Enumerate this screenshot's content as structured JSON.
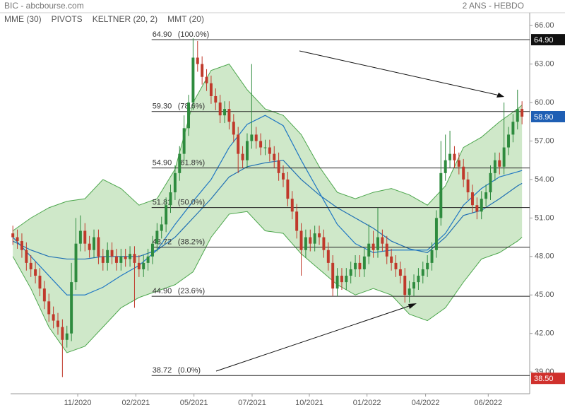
{
  "chart_data": {
    "type": "candlestick",
    "title": "BIC - abcbourse.com",
    "subtitle": "2 ANS - HEBDO",
    "up_color": "#2e8b3e",
    "down_color": "#c0392b",
    "xlim": [
      -0.5,
      114.7
    ],
    "ylim": [
      37.3,
      67.0
    ],
    "yticks": [
      {
        "value": 66,
        "label": "66.00"
      },
      {
        "value": 63,
        "label": "63.00"
      },
      {
        "value": 60,
        "label": "60.00"
      },
      {
        "value": 57,
        "label": "57.00"
      },
      {
        "value": 54,
        "label": "54.00"
      },
      {
        "value": 51,
        "label": "51.00"
      },
      {
        "value": 48,
        "label": "48.00"
      },
      {
        "value": 45,
        "label": "45.00"
      },
      {
        "value": 42,
        "label": "42.00"
      },
      {
        "value": 39,
        "label": "39.00"
      }
    ],
    "xticks": [
      {
        "value": 14.4,
        "label": "11/2020"
      },
      {
        "value": 27.3,
        "label": "02/2021"
      },
      {
        "value": 40.2,
        "label": "05/2021"
      },
      {
        "value": 53.1,
        "label": "07/2021"
      },
      {
        "value": 65.8,
        "label": "10/2021"
      },
      {
        "value": 78.6,
        "label": "01/2022"
      },
      {
        "value": 91.6,
        "label": "04/2022"
      },
      {
        "value": 105.5,
        "label": "06/2022"
      }
    ],
    "candles": [
      [
        49.8,
        50.4,
        48.9,
        49.5
      ],
      [
        49.5,
        50.1,
        48.6,
        49.2
      ],
      [
        49.2,
        49.8,
        47.9,
        48.5
      ],
      [
        48.5,
        49.1,
        46.9,
        47.5
      ],
      [
        47.5,
        48.1,
        46.4,
        47.0
      ],
      [
        47.0,
        47.6,
        45.9,
        46.5
      ],
      [
        46.5,
        47.1,
        44.9,
        45.5
      ],
      [
        45.5,
        46.1,
        43.9,
        44.5
      ],
      [
        44.5,
        45.1,
        42.9,
        43.5
      ],
      [
        43.5,
        44.1,
        42.4,
        43.0
      ],
      [
        43.0,
        43.6,
        41.9,
        42.5
      ],
      [
        42.5,
        43.1,
        38.6,
        41.5
      ],
      [
        41.5,
        42.6,
        40.9,
        42.0
      ],
      [
        42.0,
        47.5,
        41.4,
        46.0
      ],
      [
        46.0,
        51.0,
        45.4,
        49.0
      ],
      [
        49.0,
        51.2,
        48.4,
        50.0
      ],
      [
        50.0,
        50.6,
        48.4,
        49.0
      ],
      [
        49.0,
        49.6,
        47.9,
        48.5
      ],
      [
        48.5,
        50.1,
        47.9,
        49.5
      ],
      [
        49.5,
        50.1,
        47.4,
        48.0
      ],
      [
        48.0,
        48.6,
        46.9,
        47.5
      ],
      [
        47.5,
        49.1,
        46.9,
        48.5
      ],
      [
        48.5,
        49.1,
        47.4,
        48.0
      ],
      [
        48.0,
        48.6,
        46.9,
        47.5
      ],
      [
        47.5,
        48.6,
        46.9,
        48.0
      ],
      [
        48.0,
        48.6,
        47.2,
        47.8
      ],
      [
        47.8,
        48.8,
        47.2,
        48.2
      ],
      [
        48.2,
        48.8,
        44.0,
        47.5
      ],
      [
        47.5,
        48.1,
        46.4,
        47.0
      ],
      [
        47.0,
        48.1,
        46.4,
        47.5
      ],
      [
        47.5,
        48.6,
        46.9,
        48.0
      ],
      [
        48.0,
        49.6,
        47.4,
        49.0
      ],
      [
        49.0,
        50.6,
        48.4,
        50.0
      ],
      [
        50.0,
        51.1,
        49.4,
        50.5
      ],
      [
        50.5,
        52.6,
        49.9,
        52.0
      ],
      [
        52.0,
        53.6,
        51.4,
        53.0
      ],
      [
        53.0,
        55.1,
        52.4,
        54.5
      ],
      [
        54.5,
        56.6,
        53.9,
        56.0
      ],
      [
        56.0,
        59.0,
        55.4,
        58.0
      ],
      [
        58.0,
        60.6,
        57.4,
        60.0
      ],
      [
        60.0,
        65.0,
        59.4,
        63.5
      ],
      [
        63.5,
        64.8,
        62.4,
        63.0
      ],
      [
        63.0,
        63.6,
        61.4,
        62.0
      ],
      [
        62.0,
        62.6,
        60.9,
        61.5
      ],
      [
        61.5,
        62.1,
        59.9,
        60.5
      ],
      [
        60.5,
        61.1,
        59.4,
        60.0
      ],
      [
        60.0,
        60.6,
        58.4,
        59.0
      ],
      [
        59.0,
        60.1,
        58.4,
        59.5
      ],
      [
        59.5,
        60.1,
        57.9,
        58.5
      ],
      [
        58.5,
        59.1,
        56.9,
        57.5
      ],
      [
        57.5,
        58.1,
        54.5,
        56.0
      ],
      [
        56.0,
        56.6,
        54.9,
        55.5
      ],
      [
        55.5,
        57.6,
        54.9,
        57.0
      ],
      [
        57.0,
        63.0,
        56.4,
        57.5
      ],
      [
        57.5,
        58.1,
        56.4,
        57.0
      ],
      [
        57.0,
        57.6,
        55.9,
        56.5
      ],
      [
        56.5,
        57.1,
        55.9,
        56.5
      ],
      [
        56.5,
        57.1,
        55.4,
        56.0
      ],
      [
        56.0,
        56.6,
        54.9,
        55.5
      ],
      [
        55.5,
        56.1,
        53.9,
        54.5
      ],
      [
        54.5,
        55.1,
        53.4,
        54.0
      ],
      [
        54.0,
        54.6,
        51.9,
        52.5
      ],
      [
        52.5,
        53.1,
        50.9,
        51.5
      ],
      [
        51.5,
        52.1,
        49.4,
        50.0
      ],
      [
        50.0,
        50.6,
        46.5,
        48.5
      ],
      [
        48.5,
        50.1,
        47.9,
        49.5
      ],
      [
        49.5,
        50.1,
        48.4,
        49.0
      ],
      [
        49.0,
        50.4,
        48.4,
        49.8
      ],
      [
        49.8,
        50.4,
        48.9,
        49.5
      ],
      [
        49.5,
        50.1,
        47.9,
        48.5
      ],
      [
        48.5,
        49.1,
        46.9,
        47.5
      ],
      [
        47.5,
        48.1,
        44.9,
        45.5
      ],
      [
        45.5,
        47.1,
        44.9,
        46.5
      ],
      [
        46.5,
        47.1,
        45.4,
        46.0
      ],
      [
        46.0,
        47.1,
        45.4,
        46.5
      ],
      [
        46.5,
        47.6,
        45.9,
        47.0
      ],
      [
        47.0,
        48.1,
        46.4,
        47.5
      ],
      [
        47.5,
        48.1,
        46.4,
        47.0
      ],
      [
        47.0,
        48.6,
        46.4,
        48.0
      ],
      [
        48.0,
        50.5,
        47.4,
        49.0
      ],
      [
        49.0,
        50.0,
        47.9,
        48.5
      ],
      [
        48.5,
        51.8,
        47.9,
        49.5
      ],
      [
        49.5,
        50.1,
        48.4,
        49.0
      ],
      [
        49.0,
        49.6,
        47.4,
        48.0
      ],
      [
        48.0,
        48.6,
        46.9,
        47.5
      ],
      [
        47.5,
        48.1,
        46.4,
        47.0
      ],
      [
        47.0,
        47.6,
        45.9,
        46.5
      ],
      [
        46.5,
        47.1,
        44.4,
        45.0
      ],
      [
        45.0,
        46.1,
        44.4,
        45.5
      ],
      [
        45.5,
        46.6,
        44.9,
        46.0
      ],
      [
        46.0,
        47.1,
        45.4,
        46.5
      ],
      [
        46.5,
        47.6,
        45.9,
        47.0
      ],
      [
        47.0,
        48.1,
        46.4,
        47.5
      ],
      [
        47.5,
        49.1,
        46.9,
        48.5
      ],
      [
        48.5,
        51.6,
        47.9,
        51.0
      ],
      [
        51.0,
        57.0,
        50.4,
        54.5
      ],
      [
        54.5,
        57.5,
        53.9,
        55.5
      ],
      [
        55.5,
        57.8,
        54.9,
        56.0
      ],
      [
        56.0,
        56.6,
        54.9,
        55.5
      ],
      [
        55.5,
        56.1,
        54.4,
        55.0
      ],
      [
        55.0,
        55.6,
        53.4,
        54.0
      ],
      [
        54.0,
        54.6,
        52.4,
        53.0
      ],
      [
        53.0,
        53.6,
        51.4,
        52.0
      ],
      [
        52.0,
        52.6,
        50.9,
        51.5
      ],
      [
        51.5,
        53.1,
        50.9,
        52.5
      ],
      [
        52.5,
        53.6,
        51.9,
        53.0
      ],
      [
        53.0,
        55.1,
        52.4,
        54.5
      ],
      [
        54.5,
        56.1,
        53.9,
        55.5
      ],
      [
        55.5,
        56.1,
        54.4,
        55.0
      ],
      [
        55.0,
        60.0,
        54.4,
        56.5
      ],
      [
        56.5,
        58.1,
        55.9,
        57.5
      ],
      [
        57.5,
        59.1,
        56.9,
        58.5
      ],
      [
        58.5,
        61.0,
        57.9,
        59.5
      ],
      [
        59.5,
        60.1,
        58.3,
        58.9
      ]
    ],
    "line_x": [
      0,
      4,
      8,
      12,
      16,
      20,
      24,
      28,
      32,
      36,
      40,
      44,
      48,
      52,
      56,
      60,
      64,
      68,
      72,
      76,
      80,
      84,
      88,
      92,
      96,
      100,
      104,
      108,
      112,
      113
    ],
    "series": [
      {
        "name": "MME (30)",
        "color": "#1f6fb4",
        "values": [
          49.2,
          48.5,
          48.0,
          47.8,
          47.8,
          48.0,
          48.0,
          48.0,
          48.5,
          49.5,
          51.0,
          52.5,
          54.2,
          55.0,
          55.3,
          55.5,
          54.0,
          52.8,
          51.8,
          51.0,
          50.2,
          49.2,
          48.6,
          48.3,
          49.5,
          51.2,
          51.6,
          52.5,
          53.5,
          53.7
        ]
      },
      {
        "name": "MMT (20)",
        "color": "#1f77c4",
        "values": [
          49.5,
          48.0,
          46.5,
          45.0,
          45.0,
          45.6,
          46.5,
          47.3,
          48.5,
          50.5,
          52.3,
          54.0,
          56.5,
          58.3,
          59.0,
          58.2,
          55.5,
          53.0,
          50.5,
          49.0,
          48.3,
          48.5,
          48.5,
          48.5,
          49.8,
          52.0,
          53.3,
          54.2,
          54.6,
          54.7
        ]
      }
    ],
    "keltner": {
      "name": "KELTNER (20, 2)",
      "color": "#4ca64c",
      "fill": "#cfe8c9",
      "upper": [
        50.0,
        51.0,
        51.8,
        52.3,
        52.5,
        54.0,
        53.3,
        52.0,
        52.5,
        54.8,
        60.0,
        62.5,
        63.0,
        61.0,
        59.5,
        59.0,
        57.5,
        55.0,
        53.0,
        52.5,
        53.0,
        53.3,
        52.8,
        52.0,
        53.5,
        56.5,
        57.3,
        58.5,
        59.5,
        59.8
      ],
      "lower": [
        48.0,
        45.5,
        42.5,
        40.5,
        41.0,
        42.5,
        44.0,
        44.8,
        45.3,
        45.8,
        46.8,
        49.5,
        51.3,
        51.5,
        50.0,
        49.8,
        48.2,
        47.0,
        45.8,
        45.0,
        45.5,
        45.0,
        43.5,
        43.0,
        44.0,
        46.0,
        47.8,
        48.3,
        49.2,
        49.5
      ]
    },
    "pivots": {
      "name": "PIVOTS",
      "color": "#666",
      "start_x": 30.8,
      "levels": [
        {
          "value": 64.9,
          "label": "64.90",
          "ratio": "(100.0%)"
        },
        {
          "value": 59.3,
          "label": "59.30",
          "ratio": "(78.6%)"
        },
        {
          "value": 54.9,
          "label": "54.90",
          "ratio": "(61.8%)"
        },
        {
          "value": 51.81,
          "label": "51.81",
          "ratio": "(50.0%)"
        },
        {
          "value": 48.72,
          "label": "48.72",
          "ratio": "(38.2%)"
        },
        {
          "value": 44.9,
          "label": "44.90",
          "ratio": "(23.6%)"
        },
        {
          "value": 38.72,
          "label": "38.72",
          "ratio": "(0.0%)"
        }
      ]
    },
    "price_tags": [
      {
        "value": 64.9,
        "label": "64.90",
        "color": "#111111"
      },
      {
        "value": 58.9,
        "label": "58.90",
        "color": "#1f5fb4"
      },
      {
        "value": 38.5,
        "label": "38.50",
        "color": "#d0312d"
      }
    ]
  }
}
